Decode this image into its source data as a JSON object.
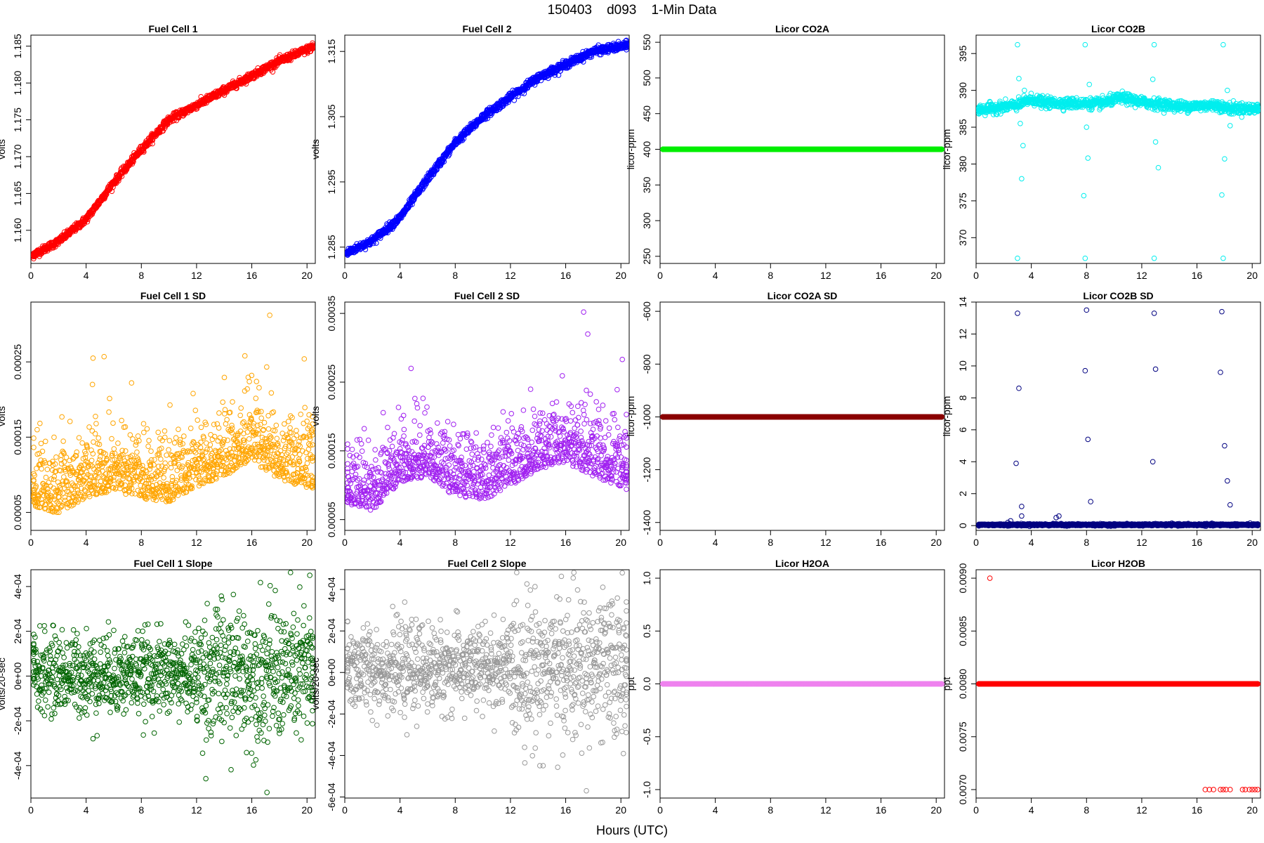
{
  "page": {
    "title": "150403    d093    1-Min Data",
    "xlabel": "Hours (UTC)"
  },
  "chart_data": [
    {
      "type": "scatter",
      "title": "Fuel Cell 1",
      "ylabel": "volts",
      "color": "#ff0000",
      "xlim": [
        0,
        20.6
      ],
      "ylim": [
        1.1555,
        1.1865
      ],
      "xticks": [
        "0",
        "4",
        "8",
        "12",
        "16",
        "20"
      ],
      "yticks": [
        "1.160",
        "1.165",
        "1.170",
        "1.175",
        "1.180",
        "1.185"
      ],
      "trend": [
        [
          0,
          1.1565
        ],
        [
          2,
          1.1585
        ],
        [
          4,
          1.1615
        ],
        [
          6,
          1.1665
        ],
        [
          8,
          1.171
        ],
        [
          10,
          1.175
        ],
        [
          12,
          1.177
        ],
        [
          14,
          1.179
        ],
        [
          16,
          1.181
        ],
        [
          18,
          1.183
        ],
        [
          20.6,
          1.185
        ]
      ],
      "noise": 0.00025
    },
    {
      "type": "scatter",
      "title": "Fuel Cell 2",
      "ylabel": "volts",
      "color": "#0000ff",
      "xlim": [
        0,
        20.6
      ],
      "ylim": [
        1.2825,
        1.3175
      ],
      "xticks": [
        "0",
        "4",
        "8",
        "12",
        "16",
        "20"
      ],
      "yticks": [
        "1.285",
        "1.295",
        "1.305",
        "1.315"
      ],
      "trend": [
        [
          0,
          1.284
        ],
        [
          2,
          1.286
        ],
        [
          4,
          1.2895
        ],
        [
          6,
          1.2955
        ],
        [
          8,
          1.301
        ],
        [
          10,
          1.305
        ],
        [
          12,
          1.308
        ],
        [
          14,
          1.311
        ],
        [
          16,
          1.313
        ],
        [
          18,
          1.315
        ],
        [
          20.6,
          1.316
        ]
      ],
      "noise": 0.0003
    },
    {
      "type": "scatter",
      "title": "Licor CO2A",
      "ylabel": "licor-ppm",
      "color": "#00ee00",
      "xlim": [
        0,
        20.6
      ],
      "ylim": [
        240,
        560
      ],
      "xticks": [
        "0",
        "4",
        "8",
        "12",
        "16",
        "20"
      ],
      "yticks": [
        "250",
        "300",
        "350",
        "400",
        "450",
        "500",
        "550"
      ],
      "constant": 400
    },
    {
      "type": "scatter",
      "title": "Licor CO2B",
      "ylabel": "licor-ppm",
      "color": "#00eeee",
      "xlim": [
        0,
        20.6
      ],
      "ylim": [
        366.5,
        397.5
      ],
      "xticks": [
        "0",
        "4",
        "8",
        "12",
        "16",
        "20"
      ],
      "yticks": [
        "370",
        "375",
        "380",
        "385",
        "390",
        "395"
      ],
      "trend": [
        [
          0,
          387.3
        ],
        [
          3,
          388.0
        ],
        [
          4,
          388.8
        ],
        [
          5,
          388.3
        ],
        [
          9,
          388.2
        ],
        [
          10.5,
          389.0
        ],
        [
          12,
          388.4
        ],
        [
          15,
          387.8
        ],
        [
          17.5,
          388.0
        ],
        [
          18,
          387.6
        ],
        [
          20.6,
          387.5
        ]
      ],
      "noise": 0.35,
      "outliers": [
        [
          3.0,
          396.2
        ],
        [
          3.0,
          367.2
        ],
        [
          3.1,
          391.6
        ],
        [
          3.2,
          385.5
        ],
        [
          3.3,
          378.0
        ],
        [
          3.4,
          382.5
        ],
        [
          3.5,
          390.0
        ],
        [
          7.9,
          396.2
        ],
        [
          7.9,
          367.2
        ],
        [
          8.0,
          385.0
        ],
        [
          8.1,
          380.8
        ],
        [
          8.2,
          390.8
        ],
        [
          7.8,
          375.7
        ],
        [
          12.9,
          396.2
        ],
        [
          12.9,
          367.2
        ],
        [
          13.0,
          383.0
        ],
        [
          13.2,
          379.5
        ],
        [
          12.8,
          391.5
        ],
        [
          17.9,
          396.2
        ],
        [
          17.9,
          367.2
        ],
        [
          18.0,
          380.7
        ],
        [
          17.8,
          375.8
        ],
        [
          18.2,
          390.0
        ],
        [
          18.4,
          385.2
        ],
        [
          18.5,
          386.8
        ]
      ]
    },
    {
      "type": "scatter",
      "title": "Fuel Cell 1 SD",
      "ylabel": "volts",
      "color": "#ffa500",
      "xlim": [
        0,
        20.6
      ],
      "ylim": [
        2.61e-05,
        0.0003295
      ],
      "xticks": [
        "0",
        "4",
        "8",
        "12",
        "16",
        "20"
      ],
      "yticks": [
        "0.00005",
        "0.00015",
        "0.00025"
      ],
      "trend": [
        [
          0,
          8.5e-05
        ],
        [
          2,
          7.5e-05
        ],
        [
          4,
          9.5e-05
        ],
        [
          6,
          0.000105
        ],
        [
          8,
          9.5e-05
        ],
        [
          10,
          9e-05
        ],
        [
          12,
          0.00011
        ],
        [
          14,
          0.000125
        ],
        [
          16,
          0.000145
        ],
        [
          18,
          0.00012
        ],
        [
          20.6,
          0.000105
        ]
      ],
      "noise": 3e-05,
      "outliers": [
        [
          4.5,
          0.000255
        ],
        [
          5.3,
          0.000257
        ],
        [
          17.3,
          0.000312
        ],
        [
          15.5,
          0.000258
        ],
        [
          19.8,
          0.000254
        ]
      ]
    },
    {
      "type": "scatter",
      "title": "Fuel Cell 2 SD",
      "ylabel": "volts",
      "color": "#a020f0",
      "xlim": [
        0,
        20.6
      ],
      "ylim": [
        3.43e-05,
        0.0003665
      ],
      "xticks": [
        "0",
        "4",
        "8",
        "12",
        "16",
        "20"
      ],
      "yticks": [
        "0.00005",
        "0.00015",
        "0.00025",
        "0.00035"
      ],
      "trend": [
        [
          0,
          0.0001
        ],
        [
          2,
          9e-05
        ],
        [
          4,
          0.00013
        ],
        [
          6,
          0.00014
        ],
        [
          8,
          0.00011
        ],
        [
          10,
          0.000105
        ],
        [
          12,
          0.000125
        ],
        [
          14,
          0.00015
        ],
        [
          16,
          0.00016
        ],
        [
          18,
          0.00014
        ],
        [
          20.6,
          0.00012
        ]
      ],
      "noise": 3e-05,
      "outliers": [
        [
          17.3,
          0.000352
        ],
        [
          17.6,
          0.00032
        ],
        [
          4.8,
          0.00027
        ],
        [
          20.1,
          0.000283
        ]
      ]
    },
    {
      "type": "scatter",
      "title": "Licor CO2A SD",
      "ylabel": "licor-ppm",
      "color": "#8b0000",
      "xlim": [
        0,
        20.6
      ],
      "ylim": [
        -1430,
        -565
      ],
      "xticks": [
        "0",
        "4",
        "8",
        "12",
        "16",
        "20"
      ],
      "yticks": [
        "-1400",
        "-1200",
        "-1000",
        "-800",
        "-600"
      ],
      "constant": -1000
    },
    {
      "type": "scatter",
      "title": "Licor CO2B SD",
      "ylabel": "licor-ppm",
      "color": "#000080",
      "xlim": [
        0,
        20.6
      ],
      "ylim": [
        -0.3,
        14.0
      ],
      "xticks": [
        "0",
        "4",
        "8",
        "12",
        "16",
        "20"
      ],
      "yticks": [
        "0",
        "2",
        "4",
        "6",
        "8",
        "10",
        "12",
        "14"
      ],
      "trend": [
        [
          0,
          0.05
        ],
        [
          20.6,
          0.05
        ]
      ],
      "noise": 0.03,
      "outliers": [
        [
          3.0,
          13.3
        ],
        [
          3.1,
          8.6
        ],
        [
          2.9,
          3.9
        ],
        [
          3.3,
          1.2
        ],
        [
          3.3,
          0.6
        ],
        [
          5.8,
          0.5
        ],
        [
          6.0,
          0.6
        ],
        [
          8.0,
          13.5
        ],
        [
          7.9,
          9.7
        ],
        [
          8.1,
          5.4
        ],
        [
          8.3,
          1.5
        ],
        [
          12.9,
          13.3
        ],
        [
          13.0,
          9.8
        ],
        [
          12.8,
          4.0
        ],
        [
          17.8,
          13.4
        ],
        [
          17.7,
          9.6
        ],
        [
          18.0,
          5.0
        ],
        [
          18.2,
          2.8
        ],
        [
          18.4,
          1.3
        ],
        [
          2.5,
          0.3
        ],
        [
          2.3,
          0.2
        ]
      ]
    },
    {
      "type": "scatter",
      "title": "Fuel Cell 1 Slope",
      "ylabel": "volts/20-sec",
      "color": "#006400",
      "xlim": [
        0,
        20.6
      ],
      "ylim": [
        -0.000545,
        0.000475
      ],
      "xticks": [
        "0",
        "4",
        "8",
        "12",
        "16",
        "20"
      ],
      "yticks": [
        "-4e-04",
        "-2e-04",
        "0e+00",
        "2e-04",
        "4e-04"
      ],
      "trend": [
        [
          0,
          1e-05
        ],
        [
          12,
          1e-05
        ],
        [
          20.6,
          1e-05
        ]
      ],
      "noise": 9e-05,
      "noise_late": 0.00015,
      "outliers": [
        [
          20.2,
          0.00045
        ],
        [
          17.1,
          -0.00052
        ],
        [
          4.5,
          -0.00028
        ]
      ]
    },
    {
      "type": "scatter",
      "title": "Fuel Cell 2 Slope",
      "ylabel": "volts/20-sec",
      "color": "#999999",
      "xlim": [
        0,
        20.6
      ],
      "ylim": [
        -0.000605,
        0.000495
      ],
      "xticks": [
        "0",
        "4",
        "8",
        "12",
        "16",
        "20"
      ],
      "yticks": [
        "-6e-04",
        "-4e-04",
        "-2e-04",
        "0e+00",
        "2e-04",
        "4e-04"
      ],
      "trend": [
        [
          0,
          2e-05
        ],
        [
          12,
          2e-05
        ],
        [
          20.6,
          2e-05
        ]
      ],
      "noise": 0.0001,
      "noise_late": 0.00017,
      "outliers": [
        [
          20.1,
          0.00048
        ],
        [
          17.5,
          -0.00057
        ],
        [
          4.5,
          -0.0003
        ]
      ]
    },
    {
      "type": "scatter",
      "title": "Licor H2OA",
      "ylabel": "ppt",
      "color": "#ee82ee",
      "xlim": [
        0,
        20.6
      ],
      "ylim": [
        -1.08,
        1.08
      ],
      "xticks": [
        "0",
        "4",
        "8",
        "12",
        "16",
        "20"
      ],
      "yticks": [
        "-1.0",
        "-0.5",
        "0.0",
        "0.5",
        "1.0"
      ],
      "constant": 0
    },
    {
      "type": "scatter",
      "title": "Licor H2OB",
      "ylabel": "ppt",
      "color": "#ff0000",
      "xlim": [
        0,
        20.6
      ],
      "ylim": [
        0.00692,
        0.00908
      ],
      "xticks": [
        "0",
        "4",
        "8",
        "12",
        "16",
        "20"
      ],
      "yticks": [
        "0.0070",
        "0.0075",
        "0.0080",
        "0.0085",
        "0.0090"
      ],
      "constant": 0.008,
      "outliers": [
        [
          1.0,
          0.009
        ],
        [
          16.6,
          0.007
        ],
        [
          16.9,
          0.007
        ],
        [
          17.2,
          0.007
        ],
        [
          17.7,
          0.007
        ],
        [
          17.9,
          0.007
        ],
        [
          18.1,
          0.007
        ],
        [
          18.4,
          0.007
        ],
        [
          19.3,
          0.007
        ],
        [
          19.5,
          0.007
        ],
        [
          19.8,
          0.007
        ],
        [
          20.0,
          0.007
        ],
        [
          20.2,
          0.007
        ],
        [
          20.4,
          0.007
        ]
      ]
    }
  ]
}
